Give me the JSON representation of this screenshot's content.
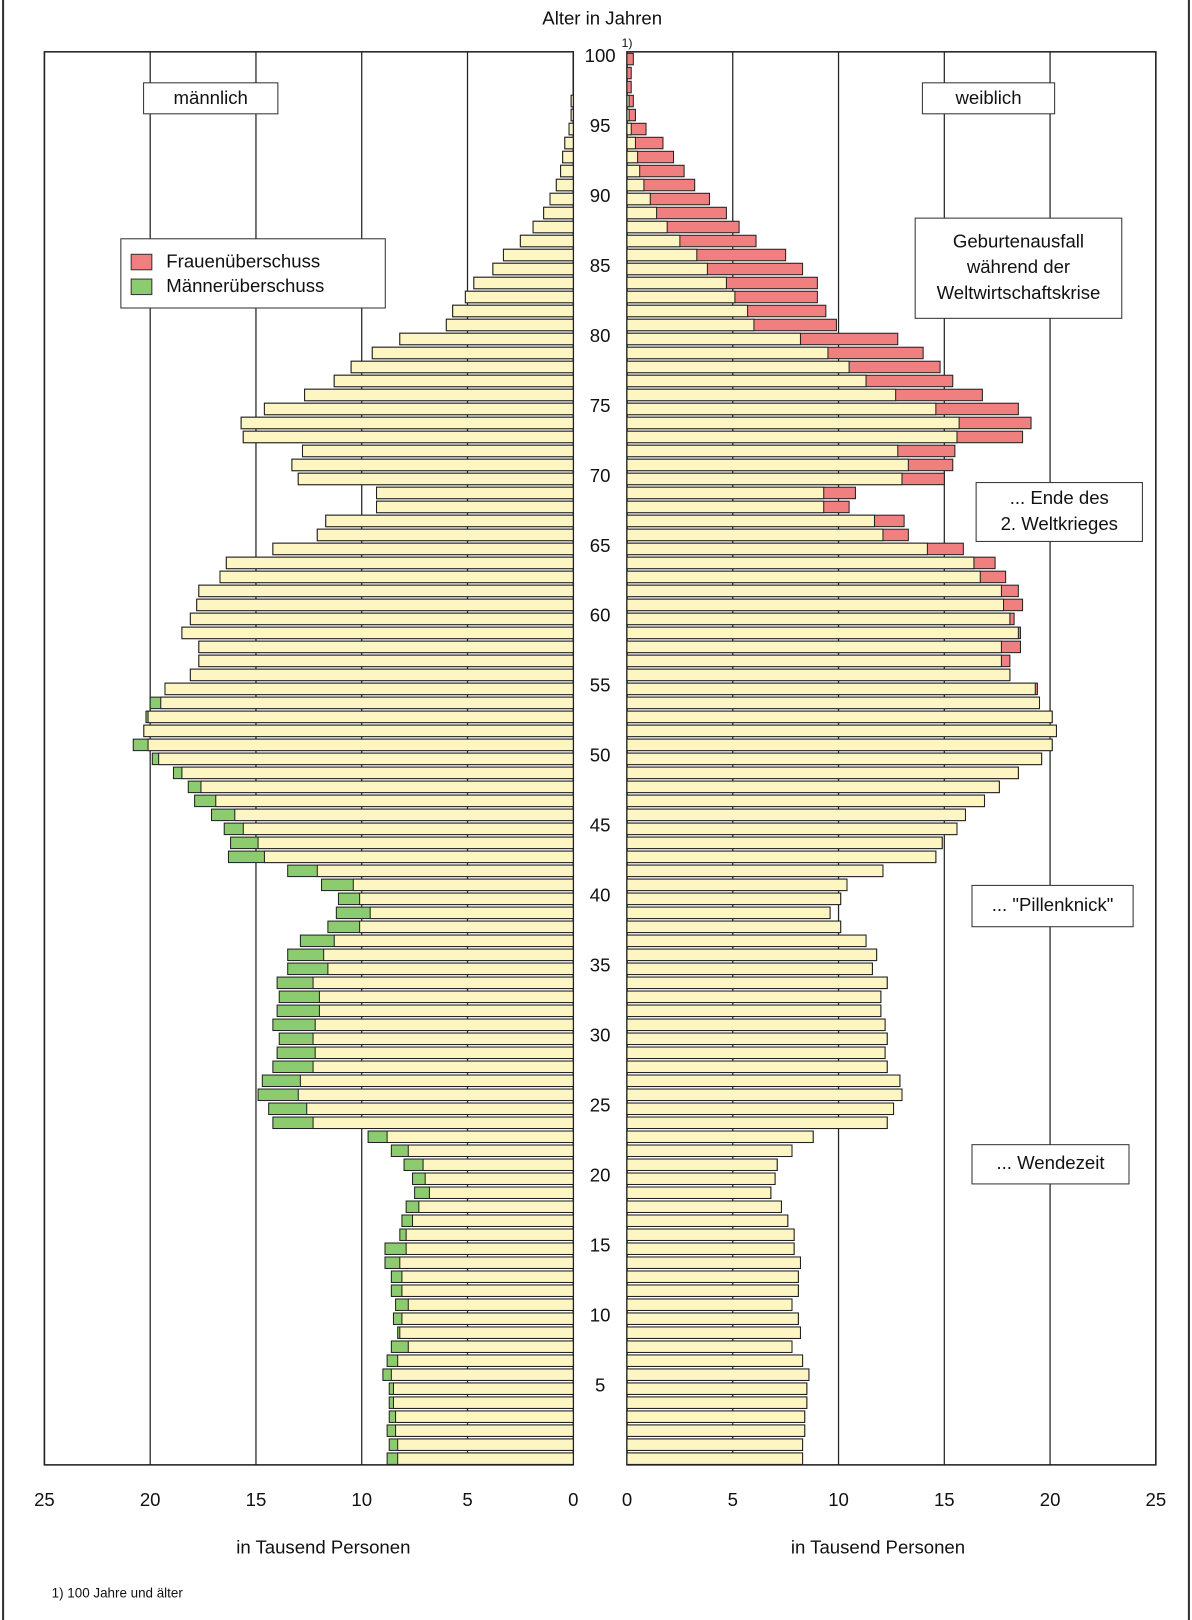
{
  "chart_data": {
    "type": "pyramid",
    "title": "Alter in Jahren",
    "footnote_marker": "1)",
    "footnote": "1)  100 Jahre und älter",
    "xlabel": "in Tausend Personen",
    "categories": [
      null,
      null,
      null,
      null,
      null,
      5,
      null,
      null,
      null,
      null,
      10,
      null,
      null,
      null,
      null,
      15,
      null,
      null,
      null,
      null,
      20,
      null,
      null,
      null,
      null,
      25,
      null,
      null,
      null,
      null,
      30,
      null,
      null,
      null,
      null,
      35,
      null,
      null,
      null,
      null,
      40,
      null,
      null,
      null,
      null,
      45,
      null,
      null,
      null,
      null,
      50,
      null,
      null,
      null,
      null,
      55,
      null,
      null,
      null,
      null,
      60,
      null,
      null,
      null,
      null,
      65,
      null,
      null,
      null,
      null,
      70,
      null,
      null,
      null,
      null,
      75,
      null,
      null,
      null,
      null,
      80,
      null,
      null,
      null,
      null,
      85,
      null,
      null,
      null,
      null,
      90,
      null,
      null,
      null,
      null,
      95,
      null,
      null,
      null,
      null,
      100
    ],
    "series": [
      {
        "name": "männlich",
        "values": [
          8.8,
          8.7,
          8.8,
          8.7,
          8.7,
          8.7,
          9.0,
          8.8,
          8.6,
          8.3,
          8.5,
          8.4,
          8.6,
          8.6,
          8.9,
          8.9,
          8.2,
          8.1,
          7.9,
          7.5,
          7.6,
          8.0,
          8.6,
          9.7,
          14.2,
          14.4,
          14.9,
          14.7,
          14.2,
          14.0,
          13.9,
          14.2,
          14.0,
          13.9,
          14.0,
          13.5,
          13.5,
          12.9,
          11.6,
          11.2,
          11.1,
          11.9,
          13.5,
          16.3,
          16.2,
          16.5,
          17.1,
          17.9,
          18.2,
          18.9,
          19.9,
          20.8,
          20.3,
          20.2,
          20.0,
          19.3,
          18.1,
          17.7,
          17.7,
          18.5,
          18.1,
          17.8,
          17.7,
          16.7,
          16.4,
          14.2,
          12.1,
          11.7,
          9.3,
          9.3,
          13.0,
          13.3,
          12.8,
          15.6,
          15.7,
          14.6,
          12.7,
          11.3,
          10.5,
          9.5,
          8.2,
          6.0,
          5.7,
          5.1,
          4.7,
          3.8,
          3.3,
          2.5,
          1.9,
          1.4,
          1.1,
          0.8,
          0.6,
          0.5,
          0.4,
          0.2,
          0.1,
          0.1,
          0,
          0,
          0
        ]
      },
      {
        "name": "weiblich",
        "values": [
          8.3,
          8.3,
          8.4,
          8.4,
          8.5,
          8.5,
          8.6,
          8.3,
          7.8,
          8.2,
          8.1,
          7.8,
          8.1,
          8.1,
          8.2,
          7.9,
          7.9,
          7.6,
          7.3,
          6.8,
          7.0,
          7.1,
          7.8,
          8.8,
          12.3,
          12.6,
          13.0,
          12.9,
          12.3,
          12.2,
          12.3,
          12.2,
          12.0,
          12.0,
          12.3,
          11.6,
          11.8,
          11.3,
          10.1,
          9.6,
          10.1,
          10.4,
          12.1,
          14.6,
          14.9,
          15.6,
          16.0,
          16.9,
          17.6,
          18.5,
          19.6,
          20.1,
          20.3,
          20.1,
          19.5,
          19.4,
          18.1,
          18.1,
          18.6,
          18.6,
          18.3,
          18.7,
          18.5,
          17.9,
          17.4,
          15.9,
          13.3,
          13.1,
          10.5,
          10.8,
          15.0,
          15.4,
          15.5,
          18.7,
          19.1,
          18.5,
          16.8,
          15.4,
          14.8,
          14.0,
          12.8,
          9.9,
          9.4,
          9.0,
          9.0,
          8.3,
          7.5,
          6.1,
          5.3,
          4.7,
          3.9,
          3.2,
          2.7,
          2.2,
          1.7,
          0.9,
          0.4,
          0.3,
          0.2,
          0.2,
          0.3
        ]
      }
    ],
    "base_color": "#fdf6c3",
    "surplus": [
      {
        "name": "Frauenüberschuss",
        "color": "#f08080"
      },
      {
        "name": "Männerüberschuss",
        "color": "#8ccc6e"
      }
    ],
    "xlim": [
      0,
      25
    ],
    "xticks": [
      0,
      5,
      10,
      15,
      20,
      25
    ],
    "grid": true,
    "annotations": [
      [
        "Geburtenausfall",
        "während der",
        "Weltwirtschaftskrise"
      ],
      [
        "... Ende des",
        "2. Weltkrieges"
      ],
      [
        "...  \"Pillenknick\""
      ],
      [
        "...  Wendezeit"
      ]
    ]
  }
}
